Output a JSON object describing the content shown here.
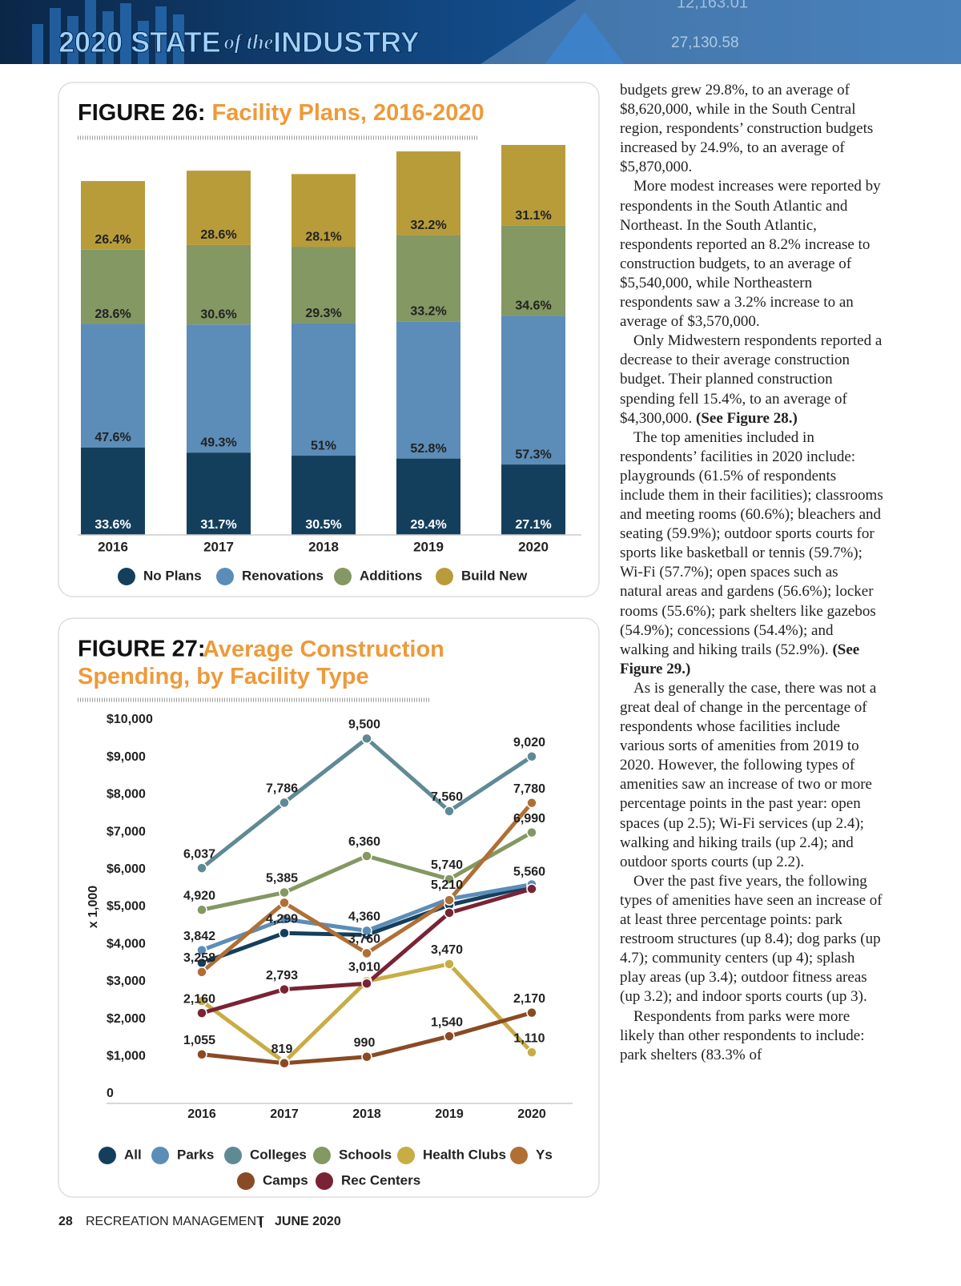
{
  "header": {
    "title_a": "2020 STATE",
    "title_b": "of the",
    "title_c": "INDUSTRY",
    "ticker": [
      "12,163.01",
      "27,130.58"
    ]
  },
  "chart_data": [
    {
      "type": "bar",
      "stacked": true,
      "label": "FIGURE 26:",
      "title": "Facility Plans, 2016-2020",
      "categories": [
        "2016",
        "2017",
        "2018",
        "2019",
        "2020"
      ],
      "legend": "bottom",
      "series": [
        {
          "name": "No Plans",
          "color": "#143f5c",
          "values": [
            33.6,
            31.7,
            30.5,
            29.4,
            27.1
          ],
          "value_labels": [
            "33.6%",
            "31.7%",
            "30.5%",
            "29.4%",
            "27.1%"
          ]
        },
        {
          "name": "Renovations",
          "color": "#5b8db8",
          "values": [
            47.6,
            49.3,
            51,
            52.8,
            57.3
          ],
          "value_labels": [
            "47.6%",
            "49.3%",
            "51%",
            "52.8%",
            "57.3%"
          ]
        },
        {
          "name": "Additions",
          "color": "#839862",
          "values": [
            28.6,
            30.6,
            29.3,
            33.2,
            34.6
          ],
          "value_labels": [
            "28.6%",
            "30.6%",
            "29.3%",
            "33.2%",
            "34.6%"
          ]
        },
        {
          "name": "Build New",
          "color": "#b89c3a",
          "values": [
            26.4,
            28.6,
            28.1,
            32.2,
            31.1
          ],
          "value_labels": [
            "26.4%",
            "28.6%",
            "28.1%",
            "32.2%",
            "31.1%"
          ]
        }
      ]
    },
    {
      "type": "line",
      "label": "FIGURE 27:",
      "title": "Average Construction Spending, by Facility Type",
      "categories": [
        "2016",
        "2017",
        "2018",
        "2019",
        "2020"
      ],
      "y_label": "x 1,000",
      "legend": "bottom",
      "ylim": [
        0,
        10000
      ],
      "yticks": [
        0,
        {
          "value": 1000,
          "label": "$1,000"
        },
        {
          "value": 2000,
          "label": "$2,000"
        },
        {
          "value": 3000,
          "label": "$3,000"
        },
        {
          "value": 4000,
          "label": "$4,000"
        },
        {
          "value": 5000,
          "label": "$5,000"
        },
        {
          "value": 6000,
          "label": "$6,000"
        },
        {
          "value": 7000,
          "label": "$7,000"
        },
        {
          "value": 8000,
          "label": "$8,000"
        },
        {
          "value": 9000,
          "label": "$9,000"
        },
        {
          "value": 10000,
          "label": "$10,000"
        }
      ],
      "series": [
        {
          "name": "All",
          "color": "#143f5c",
          "values": [
            3500,
            4299,
            4250,
            5050,
            5560
          ],
          "value_labels": [
            null,
            "4,299",
            null,
            null,
            "5,560"
          ]
        },
        {
          "name": "Parks",
          "color": "#5b8db8",
          "values": [
            3842,
            4670,
            4360,
            5210,
            5600
          ],
          "value_labels": [
            "3,842",
            null,
            "4,360",
            "5,210",
            null
          ]
        },
        {
          "name": "Colleges",
          "color": "#5f8a94",
          "values": [
            6037,
            7786,
            9500,
            7560,
            9020
          ],
          "value_labels": [
            "6,037",
            "7,786",
            "9,500",
            "7,560",
            "9,020"
          ]
        },
        {
          "name": "Schools",
          "color": "#839862",
          "values": [
            4920,
            5385,
            6360,
            5740,
            6990
          ],
          "value_labels": [
            "4,920",
            "5,385",
            "6,360",
            "5,740",
            "6,990"
          ]
        },
        {
          "name": "Health Clubs",
          "color": "#c8ad45",
          "values": [
            2480,
            850,
            3010,
            3470,
            1110
          ],
          "value_labels": [
            null,
            null,
            "3,010",
            "3,470",
            "1,110"
          ]
        },
        {
          "name": "Ys",
          "color": "#b06f35",
          "values": [
            3258,
            5110,
            3760,
            5180,
            7780
          ],
          "value_labels": [
            "3,258",
            null,
            "3,760",
            null,
            "7,780"
          ]
        },
        {
          "name": "Camps",
          "color": "#8a4a24",
          "values": [
            1055,
            819,
            990,
            1540,
            2170
          ],
          "value_labels": [
            "1,055",
            "819",
            "990",
            "1,540",
            "2,170"
          ]
        },
        {
          "name": "Rec Centers",
          "color": "#7a2335",
          "values": [
            2160,
            2793,
            2950,
            4840,
            5480
          ],
          "value_labels": [
            "2,160",
            "2,793",
            null,
            null,
            null
          ]
        }
      ]
    }
  ],
  "paragraphs": [
    {
      "text": "budgets grew 29.8%, to an average of $8,620,000, while in the South Central region, respondents’ construction budgets increased by 24.9%, to an average of $5,870,000."
    },
    {
      "text": "More modest increases were reported by respondents in the South Atlantic and Northeast. In the South Atlantic, respondents reported an 8.2% increase to construction budgets, to an average of $5,540,000, while Northeastern respondents saw a 3.2% increase to an average of $3,570,000."
    },
    {
      "text": "Only Midwestern respondents reported a decrease to their average construction budget. Their planned construction spending fell 15.4%, to an average of $4,300,000.",
      "bold": "(See Figure 28.)"
    },
    {
      "text": "The top amenities included in respondents’ facilities in 2020 include: playgrounds (61.5% of respondents include them in their facilities); classrooms and meeting rooms (60.6%); bleachers and seating (59.9%); outdoor sports courts for sports like basketball or tennis (59.7%); Wi-Fi (57.7%); open spaces such as natural areas and gardens (56.6%); locker rooms (55.6%); park shelters like gazebos (54.9%); concessions (54.4%); and walking and hiking trails (52.9%).",
      "bold": "(See Figure 29.)"
    },
    {
      "text": "As is generally the case, there was not a great deal of change in the percentage of respondents whose facilities include various sorts of amenities from 2019 to 2020. However, the following types of amenities saw an increase of two or more percentage points in the past year: open spaces (up 2.5); Wi-Fi services (up 2.4); walking and hiking trails (up 2.4); and outdoor sports courts (up 2.2)."
    },
    {
      "text": "Over the past five years, the following types of amenities have seen an increase of at least three percentage points: park restroom structures (up 8.4); dog parks (up 4.7); community centers (up 4); splash play areas (up 3.4); outdoor fitness areas (up 3.2); and indoor sports courts (up 3)."
    },
    {
      "text": "Respondents from parks were more likely than other respondents to include: park shelters (83.3% of"
    }
  ],
  "footer": {
    "page": "28",
    "magazine": "RECREATION MANAGEMENT",
    "issue": "JUNE 2020"
  }
}
